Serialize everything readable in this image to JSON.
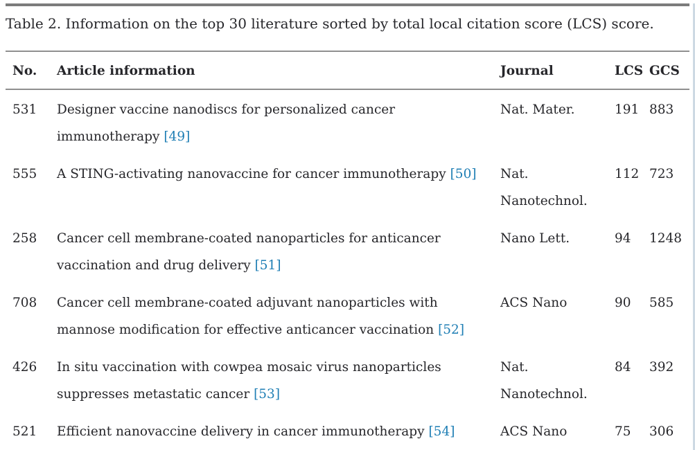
{
  "colors": {
    "link": "#1e7eb4",
    "text": "#26262a",
    "rule": "#8f8f8f",
    "top_bar": "#7c7c7c"
  },
  "caption": "Table 2. Information on the top 30 literature sorted by total local citation score (LCS) score.",
  "table": {
    "columns": [
      "No.",
      "Article information",
      "Journal",
      "LCS",
      "GCS"
    ],
    "rows": [
      {
        "no": "531",
        "article": "Designer vaccine nanodiscs for personalized cancer\nimmunotherapy",
        "ref": "[49]",
        "journal": "Nat. Mater.",
        "lcs": "191",
        "gcs": "883"
      },
      {
        "no": "555",
        "article": "A STING-activating nanovaccine for cancer immunotherapy",
        "ref": "[50]",
        "journal": "Nat.\nNanotechnol.",
        "lcs": "112",
        "gcs": "723"
      },
      {
        "no": "258",
        "article": "Cancer cell membrane-coated nanoparticles for anticancer\nvaccination and drug delivery",
        "ref": "[51]",
        "journal": "Nano Lett.",
        "lcs": "94",
        "gcs": "1248"
      },
      {
        "no": "708",
        "article": "Cancer cell membrane-coated adjuvant nanoparticles with\nmannose modification for effective anticancer vaccination",
        "ref": "[52]",
        "journal": "ACS Nano",
        "lcs": "90",
        "gcs": "585"
      },
      {
        "no": "426",
        "article": "In situ vaccination with cowpea mosaic virus nanoparticles\nsuppresses metastatic cancer",
        "ref": "[53]",
        "journal": "Nat.\nNanotechnol.",
        "lcs": "84",
        "gcs": "392"
      },
      {
        "no": "521",
        "article": "Efficient nanovaccine delivery in cancer immunotherapy",
        "ref": "[54]",
        "journal": "ACS Nano",
        "lcs": "75",
        "gcs": "306"
      }
    ]
  }
}
